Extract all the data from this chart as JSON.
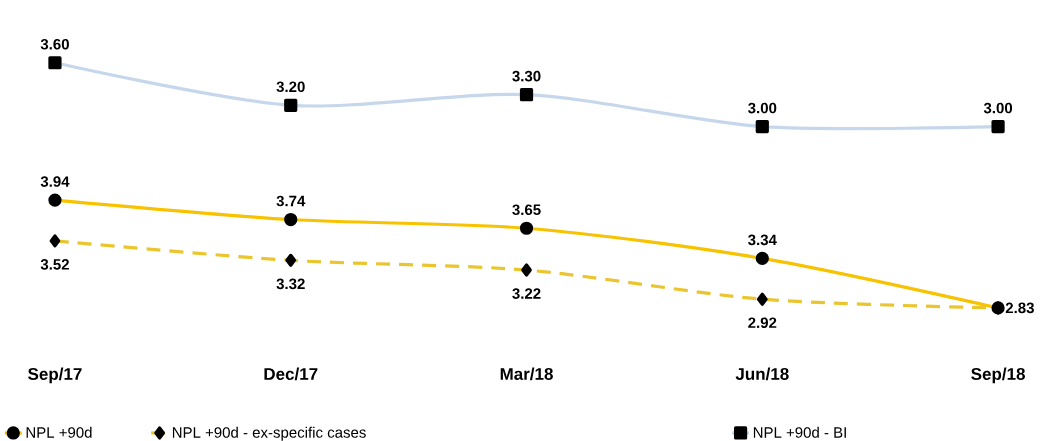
{
  "chart_data": [
    {
      "type": "line",
      "categories": [
        "Sep/17",
        "Dec/17",
        "Mar/18",
        "Jun/18",
        "Sep/18"
      ],
      "series": [
        {
          "name": "NPL +90d",
          "color": "#f7c300",
          "marker": "circle",
          "line_style": "solid",
          "values": [
            3.94,
            3.74,
            3.65,
            3.34,
            2.83
          ],
          "value_labels": [
            "3.94",
            "3.74",
            "3.65",
            "3.34",
            "2.83"
          ]
        },
        {
          "name": "NPL +90d - ex-specific cases",
          "color": "#ebc52f",
          "marker": "diamond",
          "line_style": "dashed",
          "values": [
            3.52,
            3.32,
            3.22,
            2.92,
            2.83
          ],
          "value_labels": [
            "3.52",
            "3.32",
            "3.22",
            "2.92",
            null
          ]
        }
      ],
      "tick_labels": "x",
      "legend": "bottom"
    },
    {
      "type": "line",
      "categories": [
        null,
        null,
        null,
        null,
        null
      ],
      "series": [
        {
          "name": "NPL +90d - BI",
          "color": "#c6d7ec",
          "marker": "square",
          "line_style": "solid",
          "values": [
            3.6,
            3.2,
            3.3,
            3.0,
            3.0
          ],
          "value_labels": [
            "3.60",
            "3.20",
            "3.30",
            "3.00",
            "3.00"
          ]
        }
      ],
      "tick_labels": false,
      "legend": "bottom"
    }
  ]
}
